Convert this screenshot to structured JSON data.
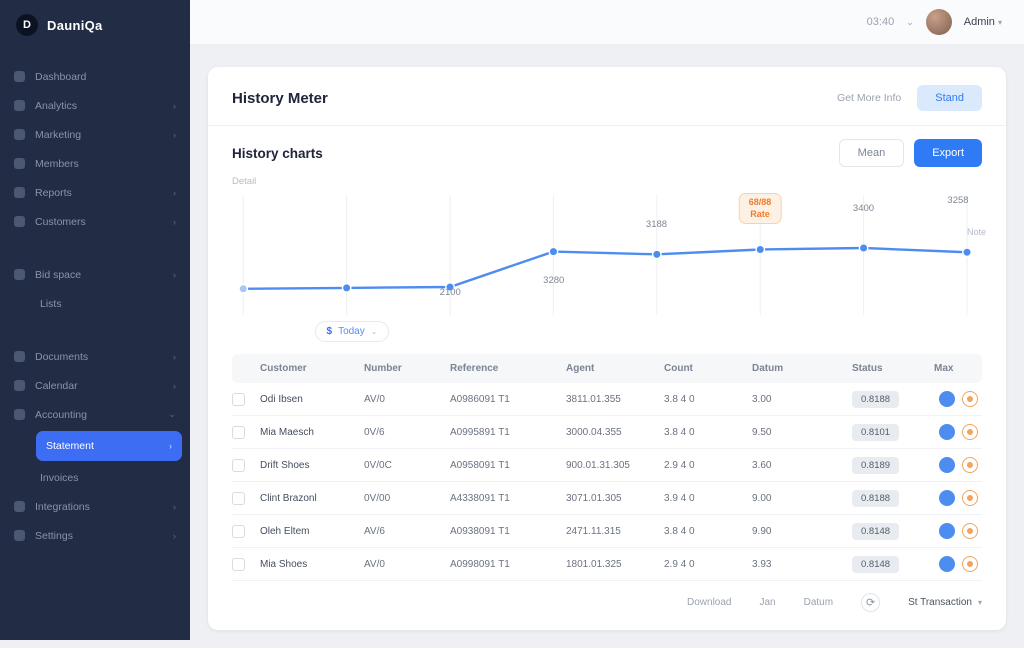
{
  "app": {
    "logo_letter": "D",
    "logo_text": "DauniQa"
  },
  "topbar": {
    "time": "03:40",
    "username": "Admin"
  },
  "sidebar": {
    "items": [
      {
        "label": "Dashboard"
      },
      {
        "label": "Analytics"
      },
      {
        "label": "Marketing"
      },
      {
        "label": "Members"
      },
      {
        "label": "Reports"
      },
      {
        "label": "Customers"
      },
      {
        "label": "Bid space"
      },
      {
        "label": "Lists"
      },
      {
        "label": "Documents"
      },
      {
        "label": "Calendar"
      },
      {
        "label": "Accounting"
      },
      {
        "label": "Statement"
      },
      {
        "label": "Invoices"
      },
      {
        "label": "Integrations"
      },
      {
        "label": "Settings"
      }
    ]
  },
  "page": {
    "title": "History Meter",
    "more_link": "Get More Info",
    "stand_button": "Stand"
  },
  "section": {
    "title": "History charts",
    "mean_button": "Mean",
    "export_button": "Export",
    "caption": "Detail"
  },
  "chart_data": {
    "type": "line",
    "x": [
      1,
      2,
      3,
      4,
      5,
      6,
      7,
      8
    ],
    "values": [
      2040,
      2070,
      2100,
      3280,
      3188,
      3350,
      3400,
      3258
    ],
    "ylim": [
      1500,
      4500
    ],
    "line_color": "#4e8df0",
    "grid": "vertical",
    "labels": [
      {
        "index": 2,
        "text": "2100",
        "side": "below"
      },
      {
        "index": 3,
        "text": "3280",
        "side": "below"
      },
      {
        "index": 4,
        "text": "3188",
        "side": "above"
      },
      {
        "index": 6,
        "text": "3400",
        "side": "above"
      },
      {
        "index": 7,
        "text": "3258",
        "side": "above"
      }
    ],
    "badge": {
      "index": 5,
      "value": "68/88",
      "label": "Rate"
    },
    "note": "Note",
    "today_pill": {
      "symbol": "$",
      "label": "Today"
    }
  },
  "table": {
    "headers": [
      "Customer",
      "Number",
      "Reference",
      "Agent",
      "Count",
      "Datum",
      "Status",
      "Max"
    ],
    "rows": [
      {
        "name": "Odi Ibsen",
        "number": "AV/0",
        "reference": "A0986091 T1",
        "agent": "3811.01.355",
        "count": "3.8 4 0",
        "datum": "3.00",
        "status": "0.8188"
      },
      {
        "name": "Mia Maesch",
        "number": "0V/6",
        "reference": "A0995891 T1",
        "agent": "3000.04.355",
        "count": "3.8 4 0",
        "datum": "9.50",
        "status": "0.8101"
      },
      {
        "name": "Drift Shoes",
        "number": "0V/0C",
        "reference": "A0958091 T1",
        "agent": "900.01.31.305",
        "count": "2.9 4 0",
        "datum": "3.60",
        "status": "0.8189"
      },
      {
        "name": "Clint Brazonl",
        "number": "0V/00",
        "reference": "A4338091 T1",
        "agent": "3071.01.305",
        "count": "3.9 4 0",
        "datum": "9.00",
        "status": "0.8188"
      },
      {
        "name": "Oleh Eltem",
        "number": "AV/6",
        "reference": "A0938091 T1",
        "agent": "2471.11.315",
        "count": "3.8 4 0",
        "datum": "9.90",
        "status": "0.8148"
      },
      {
        "name": "Mia Shoes",
        "number": "AV/0",
        "reference": "A0998091 T1",
        "agent": "1801.01.325",
        "count": "2.9 4 0",
        "datum": "3.93",
        "status": "0.8148"
      }
    ]
  },
  "footer": {
    "item1": "Download",
    "item2": "Jan",
    "item3": "Datum",
    "transaction": "St Transaction"
  }
}
